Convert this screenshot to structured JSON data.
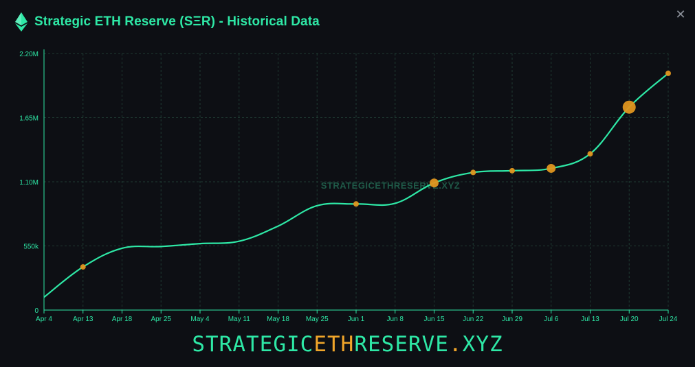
{
  "header": {
    "title": "Strategic ETH Reserve (SΞR) - Historical Data",
    "close_glyph": "✕",
    "icon": "ethereum-icon"
  },
  "colors": {
    "background": "#0d0f14",
    "accent": "#2ee8a6",
    "marker": "#e0961f",
    "grid": "#1f3a32"
  },
  "chart_data": {
    "type": "line",
    "title": "",
    "xlabel": "",
    "ylabel": "",
    "ylim": [
      0,
      2200000
    ],
    "yticks": [
      {
        "value": 0,
        "label": "0"
      },
      {
        "value": 550000,
        "label": "550k"
      },
      {
        "value": 1100000,
        "label": "1.10M"
      },
      {
        "value": 1650000,
        "label": "1.65M"
      },
      {
        "value": 2200000,
        "label": "2.20M"
      }
    ],
    "xticks": [
      "Apr 4",
      "Apr 13",
      "Apr 18",
      "Apr 25",
      "May 4",
      "May 11",
      "May 18",
      "May 25",
      "Jun 1",
      "Jun 8",
      "Jun 15",
      "Jun 22",
      "Jun 29",
      "Jul 6",
      "Jul 13",
      "Jul 20",
      "Jul 24"
    ],
    "grid": true,
    "series": [
      {
        "values": [
          110000,
          370000,
          530000,
          545000,
          570000,
          590000,
          720000,
          895000,
          910000,
          915000,
          1090000,
          1180000,
          1195000,
          1215000,
          1340000,
          1740000,
          2030000
        ]
      }
    ],
    "markers": [
      {
        "x": "Apr 13",
        "value": 370000,
        "size": "small"
      },
      {
        "x": "Jun 1",
        "value": 910000,
        "size": "small"
      },
      {
        "x": "Jun 15",
        "value": 1090000,
        "size": "medium"
      },
      {
        "x": "Jun 22",
        "value": 1180000,
        "size": "small"
      },
      {
        "x": "Jun 29",
        "value": 1195000,
        "size": "small"
      },
      {
        "x": "Jul 6",
        "value": 1215000,
        "size": "medium"
      },
      {
        "x": "Jul 13",
        "value": 1340000,
        "size": "small"
      },
      {
        "x": "Jul 20",
        "value": 1740000,
        "size": "large"
      },
      {
        "x": "Jul 24",
        "value": 2030000,
        "size": "small"
      }
    ],
    "watermark": "STRATEGICETHRESERVE.XYZ"
  },
  "footer": {
    "part1": "STRATEGIC",
    "part2": "ETH",
    "part3": "RESERVE",
    "part4": ".",
    "part5": "XYZ"
  }
}
